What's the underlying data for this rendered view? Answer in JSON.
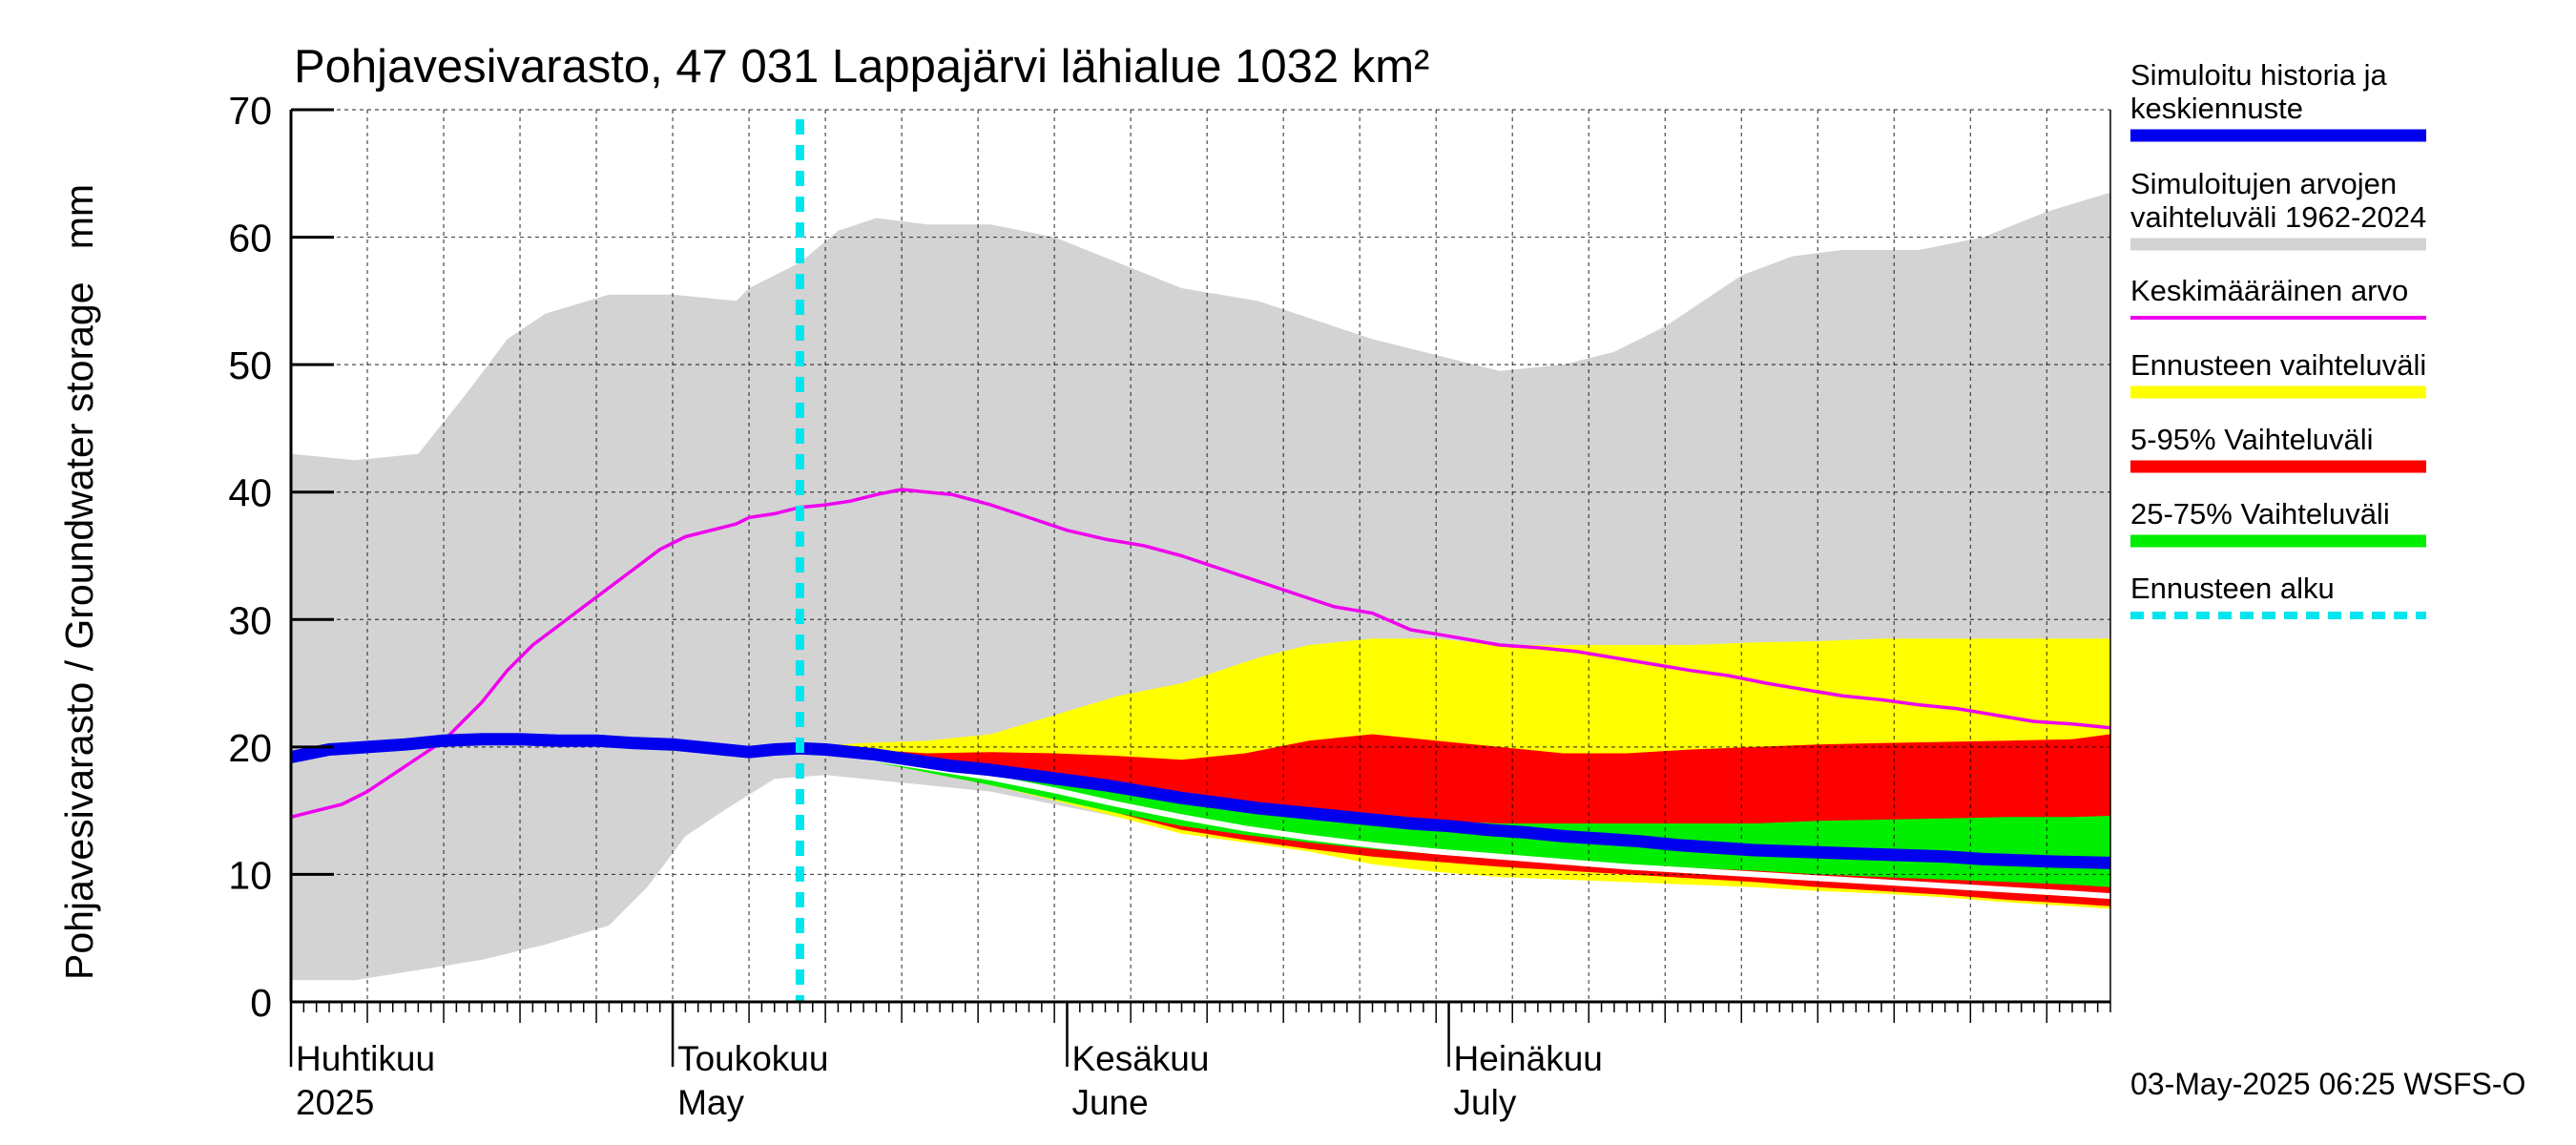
{
  "chart_data": {
    "type": "area",
    "title": "Pohjavesivarasto, 47 031 Lappajärvi lähialue 1032 km²",
    "ylabel": "Pohjavesivarasto / Groundwater storage   mm",
    "ylim": [
      0,
      70
    ],
    "yticks": [
      0,
      10,
      20,
      30,
      40,
      50,
      60,
      70
    ],
    "xlim": [
      0,
      143
    ],
    "x_unit": "days since 2025-03-23",
    "forecast_start_day": 40,
    "months": [
      {
        "day": 0,
        "fi": "Huhtikuu",
        "en": "2025"
      },
      {
        "day": 30,
        "fi": "Toukokuu",
        "en": "May"
      },
      {
        "day": 61,
        "fi": "Kesäkuu",
        "en": "June"
      },
      {
        "day": 91,
        "fi": "Heinäkuu",
        "en": "July"
      }
    ],
    "timestamp": "03-May-2025 06:25 WSFS-O",
    "series": [
      {
        "name": "Simuloitujen arvojen vaihteluväli 1962-2024 (max)",
        "color": "#d3d3d3",
        "x": [
          0,
          5,
          10,
          14,
          17,
          20,
          25,
          30,
          35,
          36,
          40,
          43,
          46,
          50,
          55,
          60,
          65,
          70,
          76,
          85,
          95,
          100,
          104,
          108,
          114,
          118,
          122,
          128,
          133,
          138,
          143
        ],
        "values": [
          43,
          42.5,
          43,
          48,
          52,
          54,
          55.5,
          55.5,
          55,
          56,
          58,
          60.5,
          61.5,
          61,
          61,
          60,
          58,
          56,
          55,
          52,
          49.5,
          50,
          51,
          53,
          57,
          58.5,
          59,
          59,
          60,
          62,
          63.5
        ]
      },
      {
        "name": "Simuloitujen arvojen vaihteluväli 1962-2024 (min)",
        "color": "#d3d3d3",
        "x": [
          0,
          5,
          10,
          15,
          20,
          25,
          28,
          31,
          34,
          38,
          42,
          45,
          50,
          55,
          60,
          65,
          70,
          76,
          80,
          85,
          90,
          95,
          100,
          105,
          110,
          115,
          120,
          125,
          130,
          135,
          140,
          143
        ],
        "values": [
          1.7,
          1.7,
          2.5,
          3.3,
          4.5,
          6,
          9,
          13,
          15,
          17.5,
          17.8,
          17.5,
          17,
          16.5,
          15.5,
          14.5,
          13.5,
          13,
          12.5,
          12,
          11.5,
          11.2,
          10.8,
          10.3,
          9.8,
          9.3,
          9,
          8.6,
          8.3,
          8,
          7.6,
          7.3
        ]
      },
      {
        "name": "Ennusteen vaihteluväli (max)",
        "color": "#ffff00",
        "x": [
          40,
          45,
          50,
          55,
          60,
          65,
          70,
          76,
          80,
          85,
          90,
          95,
          100,
          105,
          110,
          115,
          120,
          125,
          130,
          135,
          140,
          143
        ],
        "values": [
          20,
          20.3,
          20.5,
          21,
          22.5,
          24,
          25,
          27,
          28,
          28.5,
          28.5,
          28,
          28,
          28,
          28,
          28.2,
          28.3,
          28.5,
          28.5,
          28.5,
          28.5,
          28.5
        ]
      },
      {
        "name": "Ennusteen vaihteluväli (min)",
        "color": "#ffff00",
        "x": [
          40,
          45,
          50,
          55,
          60,
          65,
          70,
          75,
          80,
          85,
          90,
          95,
          100,
          105,
          110,
          115,
          120,
          125,
          130,
          135,
          140,
          143
        ],
        "values": [
          19.8,
          19,
          18,
          17,
          15.8,
          14.5,
          13.2,
          12.5,
          11.8,
          10.8,
          10.2,
          9.8,
          9.6,
          9.4,
          9.2,
          9,
          8.7,
          8.5,
          8.2,
          7.8,
          7.5,
          7.3
        ]
      },
      {
        "name": "5-95% Vaihteluväli (max)",
        "color": "#ff0000",
        "x": [
          40,
          45,
          50,
          55,
          60,
          65,
          70,
          75,
          80,
          85,
          90,
          95,
          100,
          105,
          110,
          115,
          120,
          125,
          130,
          135,
          140,
          143
        ],
        "values": [
          20,
          19.8,
          19.5,
          19.6,
          19.5,
          19.3,
          19,
          19.5,
          20.5,
          21,
          20.5,
          20,
          19.5,
          19.5,
          19.8,
          20,
          20.2,
          20.3,
          20.4,
          20.5,
          20.6,
          21
        ]
      },
      {
        "name": "5-95% Vaihteluväli (min)",
        "color": "#ff0000",
        "x": [
          40,
          45,
          50,
          55,
          60,
          65,
          70,
          75,
          80,
          85,
          90,
          95,
          100,
          105,
          110,
          115,
          120,
          125,
          130,
          135,
          140,
          143
        ],
        "values": [
          19.8,
          19,
          18.2,
          17.2,
          16,
          14.8,
          13.5,
          12.7,
          12,
          11.4,
          11,
          10.6,
          10.3,
          10,
          9.7,
          9.4,
          9,
          8.7,
          8.4,
          8,
          7.7,
          7.5
        ]
      },
      {
        "name": "25-75% Vaihteluväli (max)",
        "color": "#00ee00",
        "x": [
          40,
          45,
          50,
          55,
          60,
          65,
          70,
          75,
          80,
          85,
          90,
          95,
          100,
          105,
          110,
          115,
          120,
          125,
          130,
          135,
          140,
          143
        ],
        "values": [
          19.9,
          19.5,
          18.8,
          18.2,
          17.4,
          16.6,
          15.8,
          15.3,
          14.8,
          14.5,
          14.2,
          14,
          14,
          14,
          14,
          14,
          14.2,
          14.3,
          14.4,
          14.5,
          14.5,
          14.6
        ]
      },
      {
        "name": "25-75% Vaihteluväli (min)",
        "color": "#00ee00",
        "x": [
          40,
          45,
          50,
          55,
          60,
          65,
          70,
          75,
          80,
          85,
          90,
          95,
          100,
          105,
          110,
          115,
          120,
          125,
          130,
          135,
          140,
          143
        ],
        "values": [
          19.8,
          19,
          18,
          17,
          15.9,
          14.8,
          13.8,
          13.1,
          12.5,
          12,
          11.6,
          11.3,
          11,
          10.8,
          10.5,
          10.3,
          10,
          9.8,
          9.6,
          9.4,
          9.2,
          9
        ]
      },
      {
        "name": "Keskimääräinen arvo",
        "color": "#ee00ee",
        "x": [
          0,
          2,
          4,
          6,
          9,
          12,
          15,
          17,
          19,
          21,
          23,
          25,
          27,
          29,
          31,
          33,
          35,
          36,
          38,
          40,
          42,
          44,
          46,
          48,
          50,
          52,
          55,
          58,
          61,
          64,
          67,
          70,
          73,
          76,
          79,
          82,
          85,
          88,
          91,
          95,
          98,
          101,
          104,
          107,
          110,
          113,
          116,
          119,
          122,
          125,
          128,
          131,
          134,
          137,
          140,
          143
        ],
        "values": [
          14.5,
          15,
          15.5,
          16.5,
          18.5,
          20.5,
          23.5,
          26,
          28,
          29.5,
          31,
          32.5,
          34,
          35.5,
          36.5,
          37,
          37.5,
          38,
          38.3,
          38.8,
          39,
          39.3,
          39.8,
          40.2,
          40,
          39.8,
          39,
          38,
          37,
          36.3,
          35.8,
          35,
          34,
          33,
          32,
          31,
          30.5,
          29.2,
          28.7,
          28,
          27.8,
          27.5,
          27,
          26.5,
          26,
          25.6,
          25,
          24.5,
          24,
          23.7,
          23.3,
          23,
          22.5,
          22,
          21.8,
          21.5
        ]
      },
      {
        "name": "Simuloitu historia ja keskiennuste",
        "color": "#0000ee",
        "x": [
          0,
          3,
          6,
          9,
          12,
          15,
          18,
          21,
          24,
          27,
          30,
          33,
          36,
          38,
          40,
          42,
          44,
          46,
          48,
          50,
          52,
          55,
          58,
          61,
          64,
          67,
          70,
          73,
          76,
          79,
          82,
          85,
          88,
          91,
          94,
          97,
          100,
          103,
          106,
          109,
          112,
          115,
          118,
          121,
          124,
          127,
          130,
          133,
          136,
          139,
          143
        ],
        "values": [
          19.2,
          19.8,
          20,
          20.2,
          20.5,
          20.6,
          20.6,
          20.5,
          20.5,
          20.3,
          20.2,
          19.9,
          19.6,
          19.8,
          19.9,
          19.8,
          19.6,
          19.4,
          19.1,
          18.8,
          18.5,
          18.2,
          17.8,
          17.4,
          17,
          16.5,
          16,
          15.6,
          15.2,
          14.9,
          14.6,
          14.3,
          14,
          13.8,
          13.5,
          13.3,
          13,
          12.8,
          12.6,
          12.3,
          12.1,
          11.9,
          11.8,
          11.7,
          11.6,
          11.5,
          11.4,
          11.2,
          11.1,
          11,
          10.9
        ]
      },
      {
        "name": "Simuloitu historia ja keskiennuste (white trace)",
        "color": "#ffffff",
        "x": [
          40,
          45,
          50,
          55,
          60,
          65,
          70,
          75,
          80,
          85,
          90,
          95,
          100,
          105,
          110,
          115,
          120,
          125,
          130,
          135,
          140,
          143
        ],
        "values": [
          19.8,
          19.2,
          18.4,
          17.6,
          16.6,
          15.5,
          14.5,
          13.6,
          12.9,
          12.3,
          11.8,
          11.4,
          11,
          10.6,
          10.3,
          10,
          9.7,
          9.4,
          9.1,
          8.8,
          8.5,
          8.3
        ]
      }
    ],
    "legend": [
      {
        "label": "Simuloitu historia ja keskiennuste",
        "color": "#0000ee",
        "style": "thick"
      },
      {
        "label": "Simuloitujen arvojen vaihteluväli 1962-2024",
        "color": "#d3d3d3",
        "style": "thick"
      },
      {
        "label": "Keskimääräinen arvo",
        "color": "#ee00ee",
        "style": "thin"
      },
      {
        "label": "Ennusteen vaihteluväli",
        "color": "#ffff00",
        "style": "thick"
      },
      {
        "label": "5-95% Vaihteluväli",
        "color": "#ff0000",
        "style": "thick"
      },
      {
        "label": "25-75% Vaihteluväli",
        "color": "#00ee00",
        "style": "thick"
      },
      {
        "label": "Ennusteen alku",
        "color": "#00e5ee",
        "style": "dashed"
      }
    ],
    "legend_text": {
      "blue_line1": "Simuloitu historia ja",
      "blue_line2": "keskiennuste",
      "grey_line1": "Simuloitujen arvojen",
      "grey_line2": "vaihteluväli 1962-2024"
    }
  }
}
